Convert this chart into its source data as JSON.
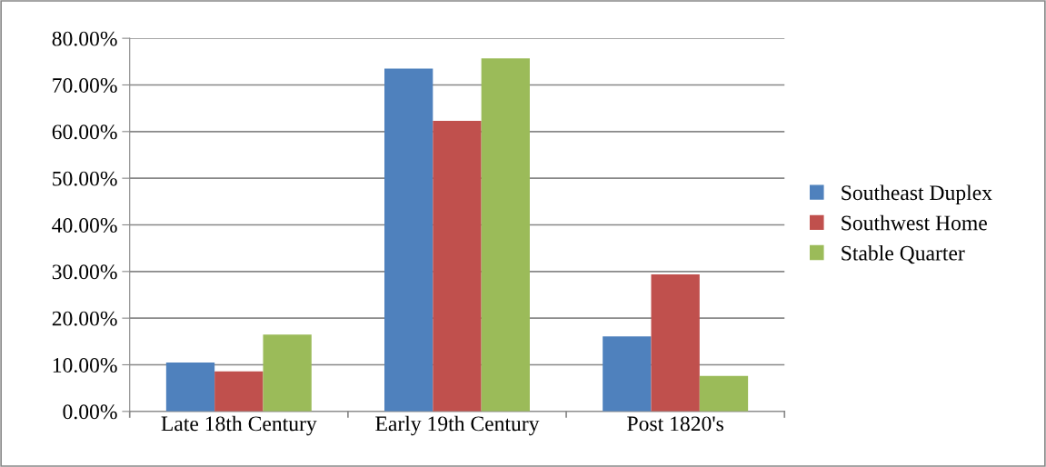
{
  "chart_data": {
    "type": "bar",
    "categories": [
      "Late 18th Century",
      "Early 19th Century",
      "Post 1820's"
    ],
    "series": [
      {
        "name": "Southeast Duplex",
        "color": "#4f81bd",
        "values": [
          10.5,
          73.5,
          16.1
        ]
      },
      {
        "name": "Southwest Home",
        "color": "#c0504d",
        "values": [
          8.6,
          62.3,
          29.4
        ]
      },
      {
        "name": "Stable Quarter",
        "color": "#9bbb59",
        "values": [
          16.5,
          75.7,
          7.6
        ]
      }
    ],
    "ylim": [
      0,
      80
    ],
    "yticks": [
      {
        "value": 0,
        "label": "0.00%"
      },
      {
        "value": 10,
        "label": "10.00%"
      },
      {
        "value": 20,
        "label": "20.00%"
      },
      {
        "value": 30,
        "label": "30.00%"
      },
      {
        "value": 40,
        "label": "40.00%"
      },
      {
        "value": 50,
        "label": "50.00%"
      },
      {
        "value": 60,
        "label": "60.00%"
      },
      {
        "value": 70,
        "label": "70.00%"
      },
      {
        "value": 80,
        "label": "80.00%"
      }
    ],
    "grid": "y",
    "legend": "right"
  }
}
